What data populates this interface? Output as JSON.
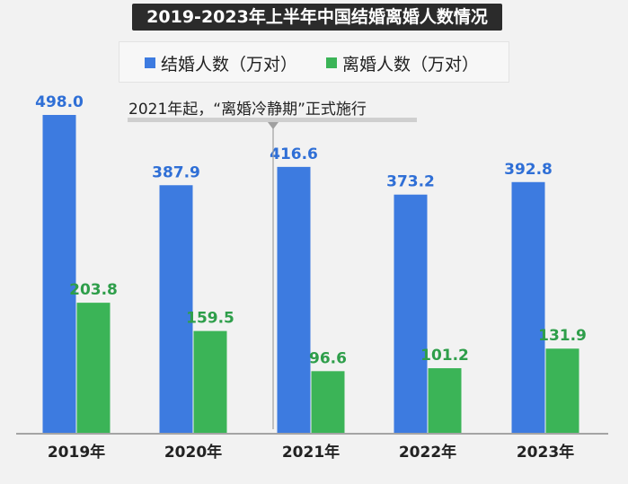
{
  "chart_data": {
    "type": "bar",
    "title": "2019-2023年上半年中国结婚离婚人数情况",
    "categories": [
      "2019年",
      "2020年",
      "2021年",
      "2022年",
      "2023年"
    ],
    "series": [
      {
        "name": "结婚人数（万对）",
        "color": "#3d7be0",
        "label_color": "#2f6fd6",
        "values": [
          498.0,
          387.9,
          416.6,
          373.2,
          392.8
        ]
      },
      {
        "name": "离婚人数（万对）",
        "color": "#3bb457",
        "label_color": "#2e9e4a",
        "values": [
          203.8,
          159.5,
          96.6,
          101.2,
          131.9
        ]
      }
    ],
    "ylim": [
      0,
      498.0
    ],
    "grid": false,
    "legend_position": "top",
    "annotation": {
      "text": "2021年起，“离婚冷静期”正式施行",
      "at_category": "2021年"
    }
  }
}
